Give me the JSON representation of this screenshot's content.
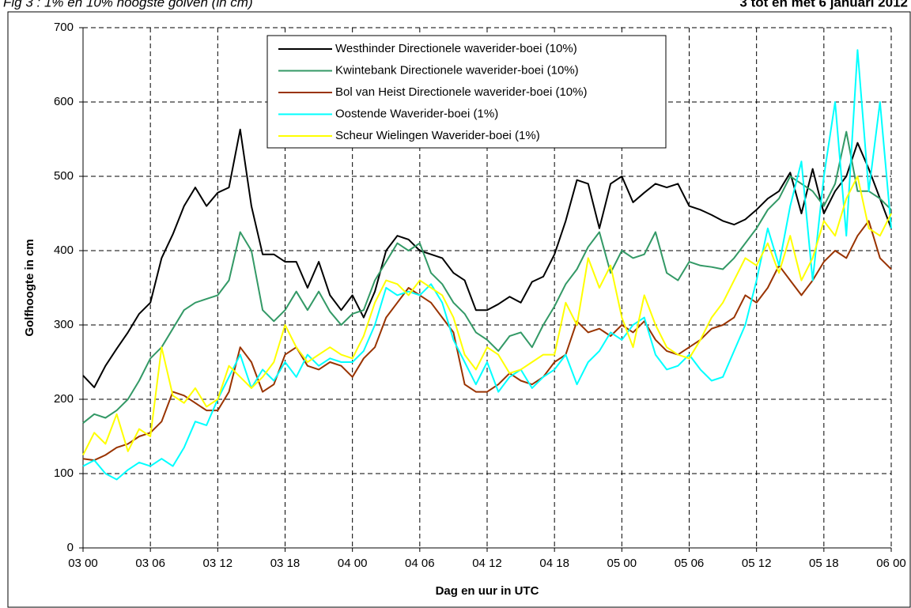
{
  "chart_data": {
    "type": "line",
    "title": "Fig 3 : 1% en 10% hoogste golven (in cm)",
    "subtitle": "3 tot en met 6 januari 2012",
    "xlabel": "Dag en uur in UTC",
    "ylabel": "Golfhoogte in cm",
    "xlim": [
      0,
      72
    ],
    "xticks": [
      {
        "value": 0,
        "label": "03 00"
      },
      {
        "value": 6,
        "label": "03 06"
      },
      {
        "value": 12,
        "label": "03 12"
      },
      {
        "value": 18,
        "label": "03 18"
      },
      {
        "value": 24,
        "label": "04 00"
      },
      {
        "value": 30,
        "label": "04 06"
      },
      {
        "value": 36,
        "label": "04 12"
      },
      {
        "value": 42,
        "label": "04 18"
      },
      {
        "value": 48,
        "label": "05 00"
      },
      {
        "value": 54,
        "label": "05 06"
      },
      {
        "value": 60,
        "label": "05 12"
      },
      {
        "value": 66,
        "label": "05 18"
      },
      {
        "value": 72,
        "label": "06 00"
      }
    ],
    "ylim": [
      0,
      700
    ],
    "yticks": [
      0,
      100,
      200,
      300,
      400,
      500,
      600,
      700
    ],
    "grid": true,
    "legend": "top",
    "x": [
      0,
      1,
      2,
      3,
      4,
      5,
      6,
      7,
      8,
      9,
      10,
      11,
      12,
      13,
      14,
      15,
      16,
      17,
      18,
      19,
      20,
      21,
      22,
      23,
      24,
      25,
      26,
      27,
      28,
      29,
      30,
      31,
      32,
      33,
      34,
      35,
      36,
      37,
      38,
      39,
      40,
      41,
      42,
      43,
      44,
      45,
      46,
      47,
      48,
      49,
      50,
      51,
      52,
      53,
      54,
      55,
      56,
      57,
      58,
      59,
      60,
      61,
      62,
      63,
      64,
      65,
      66,
      67,
      68,
      69,
      70,
      71,
      72
    ],
    "series": [
      {
        "name": "Westhinder Directionele waverider-boei (10%)",
        "color": "#000000",
        "values": [
          232,
          216,
          245,
          268,
          290,
          315,
          330,
          390,
          422,
          460,
          485,
          460,
          478,
          485,
          563,
          460,
          395,
          395,
          385,
          385,
          350,
          385,
          340,
          320,
          340,
          310,
          345,
          400,
          420,
          415,
          400,
          395,
          390,
          370,
          360,
          320,
          320,
          328,
          338,
          330,
          358,
          365,
          395,
          440,
          495,
          490,
          430,
          490,
          500,
          465,
          478,
          490,
          485,
          490,
          460,
          455,
          448,
          440,
          435,
          442,
          455,
          470,
          480,
          505,
          450,
          510,
          450,
          480,
          500,
          545,
          510,
          470,
          430
        ]
      },
      {
        "name": "Kwintebank Directionele waverider-boei (10%)",
        "color": "#339966",
        "values": [
          168,
          180,
          175,
          185,
          200,
          225,
          255,
          270,
          295,
          320,
          330,
          335,
          340,
          360,
          425,
          400,
          320,
          305,
          320,
          345,
          320,
          345,
          318,
          300,
          315,
          320,
          360,
          385,
          410,
          400,
          410,
          370,
          355,
          330,
          315,
          290,
          280,
          265,
          285,
          290,
          270,
          300,
          325,
          355,
          375,
          405,
          425,
          370,
          400,
          390,
          395,
          425,
          370,
          360,
          385,
          380,
          378,
          375,
          390,
          410,
          430,
          455,
          470,
          500,
          490,
          480,
          460,
          490,
          560,
          480,
          480,
          470,
          455
        ]
      },
      {
        "name": "Bol van Heist Directionele waverider-boei (10%)",
        "color": "#993300",
        "values": [
          120,
          118,
          125,
          135,
          140,
          150,
          155,
          170,
          210,
          205,
          195,
          185,
          185,
          210,
          270,
          250,
          210,
          220,
          260,
          270,
          245,
          240,
          250,
          245,
          230,
          255,
          270,
          310,
          330,
          350,
          340,
          330,
          310,
          290,
          220,
          210,
          210,
          220,
          235,
          225,
          220,
          230,
          250,
          260,
          305,
          290,
          295,
          285,
          300,
          290,
          305,
          280,
          265,
          260,
          270,
          280,
          295,
          300,
          310,
          340,
          330,
          350,
          380,
          360,
          340,
          360,
          385,
          400,
          390,
          420,
          440,
          390,
          375
        ]
      },
      {
        "name": "Oostende Waverider-boei (1%)",
        "color": "#00ffff",
        "values": [
          110,
          118,
          100,
          92,
          105,
          115,
          110,
          120,
          110,
          135,
          170,
          165,
          200,
          230,
          260,
          215,
          240,
          225,
          250,
          230,
          260,
          245,
          255,
          250,
          250,
          265,
          300,
          350,
          340,
          345,
          340,
          355,
          330,
          280,
          250,
          220,
          250,
          210,
          230,
          240,
          215,
          230,
          240,
          260,
          220,
          250,
          265,
          290,
          280,
          300,
          310,
          260,
          240,
          245,
          260,
          240,
          225,
          230,
          265,
          300,
          360,
          430,
          380,
          460,
          520,
          360,
          500,
          600,
          420,
          670,
          480,
          600,
          430
        ]
      },
      {
        "name": "Scheur Wielingen Waverider-boei (1%)",
        "color": "#ffff00",
        "values": [
          125,
          155,
          140,
          180,
          130,
          160,
          150,
          270,
          205,
          195,
          215,
          190,
          200,
          245,
          230,
          215,
          230,
          250,
          300,
          270,
          250,
          260,
          270,
          260,
          255,
          285,
          330,
          360,
          355,
          340,
          360,
          350,
          340,
          310,
          260,
          240,
          270,
          260,
          235,
          240,
          250,
          260,
          260,
          330,
          300,
          390,
          350,
          380,
          310,
          270,
          340,
          300,
          270,
          260,
          255,
          280,
          310,
          330,
          360,
          390,
          380,
          410,
          370,
          420,
          360,
          390,
          440,
          420,
          470,
          500,
          430,
          420,
          450
        ]
      }
    ]
  }
}
